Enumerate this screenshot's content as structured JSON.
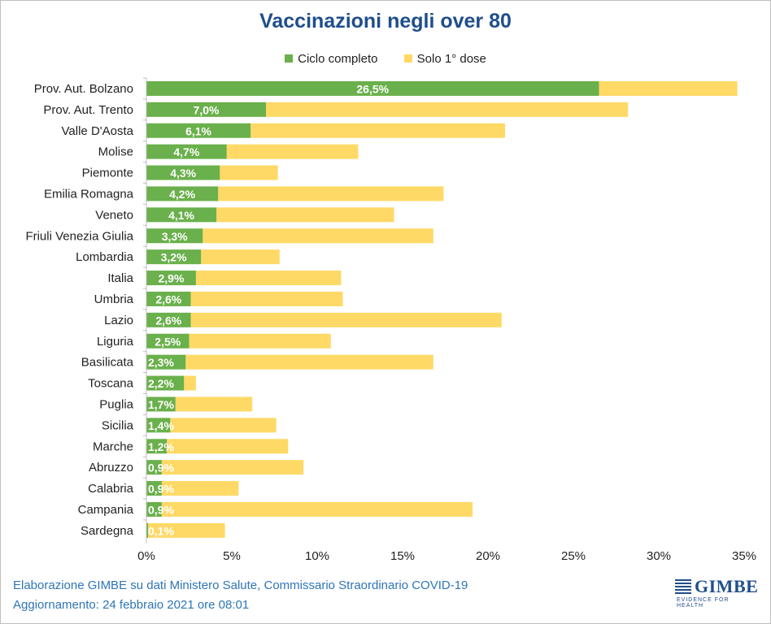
{
  "colors": {
    "ciclo_completo": "#6ab04c",
    "solo_prima_dose": "#ffd966",
    "title": "#1f4e8c",
    "footer": "#2e75b6"
  },
  "chart_data": {
    "type": "bar",
    "orientation": "horizontal",
    "stacked": true,
    "title": "Vaccinazioni negli over 80",
    "legend_position": "top",
    "grid": false,
    "xlim": [
      0,
      35
    ],
    "xticks": [
      "0%",
      "5%",
      "10%",
      "15%",
      "20%",
      "25%",
      "30%",
      "35%"
    ],
    "xtick_values": [
      0,
      5,
      10,
      15,
      20,
      25,
      30,
      35
    ],
    "categories": [
      "Prov. Aut. Bolzano",
      "Prov. Aut. Trento",
      "Valle D'Aosta",
      "Molise",
      "Piemonte",
      "Emilia Romagna",
      "Veneto",
      "Friuli Venezia Giulia",
      "Lombardia",
      "Italia",
      "Umbria",
      "Lazio",
      "Liguria",
      "Basilicata",
      "Toscana",
      "Puglia",
      "Sicilia",
      "Marche",
      "Abruzzo",
      "Calabria",
      "Campania",
      "Sardegna"
    ],
    "series": [
      {
        "name": "Ciclo completo",
        "values": [
          26.5,
          7.0,
          6.1,
          4.7,
          4.3,
          4.2,
          4.1,
          3.3,
          3.2,
          2.9,
          2.6,
          2.6,
          2.5,
          2.3,
          2.2,
          1.7,
          1.4,
          1.2,
          0.9,
          0.9,
          0.9,
          0.1
        ],
        "labels": [
          "26,5%",
          "7,0%",
          "6,1%",
          "4,7%",
          "4,3%",
          "4,2%",
          "4,1%",
          "3,3%",
          "3,2%",
          "2,9%",
          "2,6%",
          "2,6%",
          "2,5%",
          "2,3%",
          "2,2%",
          "1,7%",
          "1,4%",
          "1,2%",
          "0,9%",
          "0,9%",
          "0,9%",
          "0,1%"
        ]
      },
      {
        "name": "Solo 1° dose",
        "values": [
          8.1,
          21.2,
          14.9,
          7.7,
          3.4,
          13.2,
          10.4,
          13.5,
          4.6,
          8.5,
          8.9,
          18.2,
          8.3,
          14.5,
          0.7,
          4.5,
          6.2,
          7.1,
          8.3,
          4.5,
          18.2,
          4.5
        ]
      }
    ]
  },
  "footer": {
    "line1": "Elaborazione GIMBE su dati Ministero Salute, Commissario Straordinario COVID-19",
    "line2": "Aggiornamento: 24 febbraio 2021 ore 08:01"
  },
  "logo": {
    "name": "GIMBE",
    "tagline": "EVIDENCE FOR HEALTH"
  }
}
